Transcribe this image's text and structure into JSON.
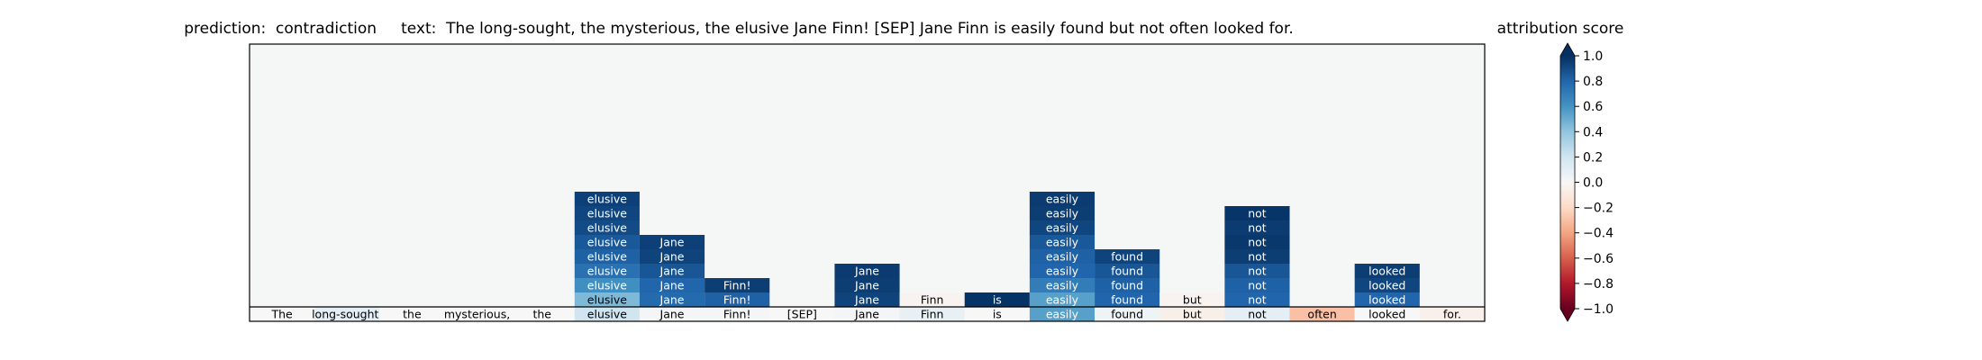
{
  "chart_data": {
    "type": "heatmap",
    "title": "prediction:  contradiction     text:  The long-sought, the mysterious, the elusive Jane Finn! [SEP] Jane Finn is easily found but not often looked for.",
    "tokens": [
      "The",
      "long-sought,",
      "the",
      "mysterious,",
      "the",
      "elusive",
      "Jane",
      "Finn!",
      "[SEP]",
      "Jane",
      "Finn",
      "is",
      "easily",
      "found",
      "but",
      "not",
      "often",
      "looked",
      "for."
    ],
    "base_row_scores": [
      0.0,
      0.1,
      0.0,
      0.0,
      0.0,
      0.2,
      0.02,
      0.02,
      0.0,
      0.02,
      0.08,
      0.0,
      0.55,
      0.05,
      -0.06,
      0.1,
      -0.3,
      0.0,
      -0.05
    ],
    "stacked_cells": [
      [],
      [],
      [],
      [],
      [],
      [
        0.45,
        0.62,
        0.75,
        0.82,
        0.85,
        0.9,
        0.92,
        0.94
      ],
      [
        0.78,
        0.8,
        0.86,
        0.93,
        0.94
      ],
      [
        0.82,
        0.95
      ],
      [],
      [
        0.93,
        0.95,
        0.96
      ],
      [
        -0.03
      ],
      [
        0.99
      ],
      [
        0.55,
        0.7,
        0.8,
        0.82,
        0.85,
        0.92,
        0.95,
        0.96
      ],
      [
        0.8,
        0.82,
        0.86,
        0.93
      ],
      [
        -0.03
      ],
      [
        0.8,
        0.82,
        0.86,
        0.95,
        0.97,
        0.96,
        0.98
      ],
      [],
      [
        0.8,
        0.92,
        0.95
      ],
      []
    ],
    "colorbar": {
      "label": "attribution score",
      "colormap": "RdBu",
      "ticks": [
        "1.0",
        "0.8",
        "0.6",
        "0.4",
        "0.2",
        "0.0",
        "−0.2",
        "−0.4",
        "−0.6",
        "−0.8",
        "−1.0"
      ],
      "range": [
        -1.0,
        1.0
      ]
    },
    "background_color": "#f5f6f6",
    "grid": false
  }
}
